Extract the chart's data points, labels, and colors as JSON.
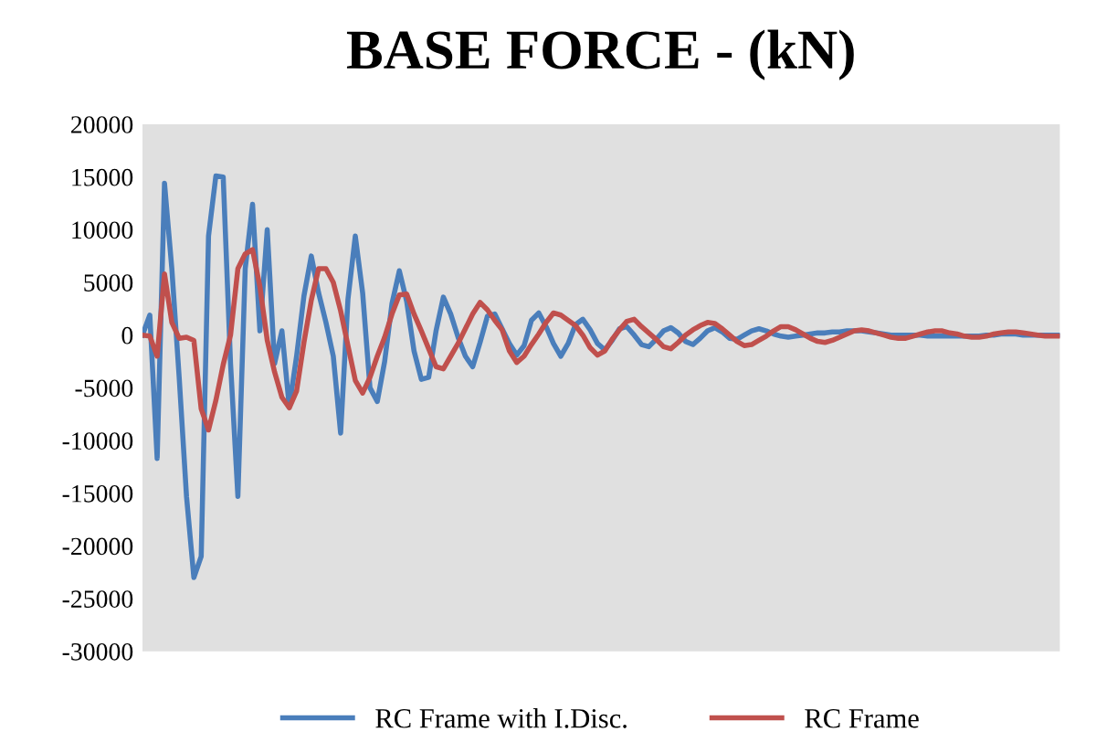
{
  "chart_data": {
    "type": "line",
    "title": "BASE FORCE - (kN)",
    "categories": [
      null,
      null,
      null,
      null,
      null,
      null,
      null,
      null,
      null,
      null,
      null,
      null,
      null,
      null,
      null,
      null,
      null,
      null,
      null,
      null,
      null,
      null,
      null,
      null,
      null,
      null,
      null,
      null,
      null,
      null,
      null,
      null,
      null,
      null,
      null,
      null,
      null,
      null,
      null,
      null,
      null,
      null,
      null,
      null,
      null,
      null,
      null,
      null,
      null,
      null,
      null,
      null,
      null,
      null,
      null,
      null,
      null,
      null,
      null,
      null,
      null,
      null,
      null,
      null,
      null,
      null,
      null,
      null,
      null,
      null,
      null,
      null,
      null,
      null,
      null,
      null,
      null,
      null,
      null,
      null,
      null,
      null,
      null,
      null,
      null,
      null,
      null,
      null,
      null,
      null,
      null,
      null,
      null,
      null,
      null,
      null,
      null,
      null,
      null,
      null,
      null,
      null,
      null,
      null,
      null,
      null,
      null,
      null,
      null,
      null,
      null,
      null,
      null,
      null,
      null,
      null,
      null,
      null,
      null,
      null,
      null,
      null,
      null,
      null,
      null,
      null
    ],
    "ylim": [
      -30000,
      20000
    ],
    "yticks": [
      -30000,
      -25000,
      -20000,
      -15000,
      -10000,
      -5000,
      0,
      5000,
      10000,
      15000,
      20000
    ],
    "tick_labels": "y",
    "grid": false,
    "legend": "bottom",
    "line_style": "solid",
    "marker": "none",
    "series": [
      {
        "name": "RC Frame with I.Disc.",
        "color": "#4a7ebb",
        "values": [
          0,
          1900,
          -11700,
          14400,
          6300,
          -4000,
          -15300,
          -23000,
          -21000,
          9400,
          15100,
          15000,
          -2700,
          -15300,
          6300,
          12400,
          400,
          10000,
          -2700,
          400,
          -6800,
          -2000,
          3700,
          7500,
          4000,
          1200,
          -2000,
          -9300,
          3400,
          9400,
          4000,
          -5000,
          -6300,
          -2500,
          3000,
          6100,
          3200,
          -1500,
          -4200,
          -4000,
          400,
          3600,
          2000,
          -200,
          -2000,
          -3000,
          -700,
          1800,
          2000,
          600,
          -800,
          -1900,
          -1000,
          1400,
          2100,
          800,
          -800,
          -2000,
          -800,
          1000,
          1500,
          500,
          -800,
          -1400,
          -500,
          600,
          800,
          0,
          -900,
          -1100,
          -400,
          400,
          700,
          200,
          -600,
          -900,
          -300,
          400,
          700,
          300,
          -300,
          -400,
          0,
          400,
          600,
          400,
          100,
          -100,
          -200,
          -100,
          0,
          100,
          200,
          200,
          300,
          300,
          400,
          400,
          400,
          300,
          200,
          100,
          0,
          0,
          0,
          0,
          0,
          -100,
          -100,
          -100,
          -100,
          -100,
          -100,
          -100,
          -100,
          0,
          0,
          100,
          100,
          100,
          0,
          0,
          0,
          0,
          0,
          0
        ]
      },
      {
        "name": "RC Frame",
        "color": "#c0504d",
        "values": [
          0,
          -100,
          -2000,
          5800,
          1200,
          -300,
          -200,
          -500,
          -7000,
          -9000,
          -6200,
          -2800,
          0,
          6300,
          7700,
          8100,
          4600,
          -500,
          -3500,
          -5900,
          -6900,
          -5300,
          -700,
          3300,
          6300,
          6300,
          5000,
          2300,
          -1000,
          -4300,
          -5500,
          -4000,
          -2000,
          -200,
          2000,
          3800,
          3900,
          2000,
          400,
          -1300,
          -3000,
          -3200,
          -2000,
          -800,
          600,
          2000,
          3100,
          2400,
          1400,
          500,
          -1500,
          -2600,
          -2000,
          -900,
          100,
          1200,
          2100,
          1900,
          1400,
          900,
          0,
          -1200,
          -1900,
          -1500,
          -400,
          500,
          1300,
          1500,
          800,
          200,
          -400,
          -1100,
          -1300,
          -700,
          0,
          500,
          900,
          1200,
          1100,
          600,
          0,
          -600,
          -1000,
          -900,
          -500,
          -100,
          400,
          800,
          800,
          500,
          100,
          -300,
          -600,
          -700,
          -500,
          -200,
          100,
          400,
          500,
          400,
          200,
          0,
          -200,
          -300,
          -300,
          -100,
          100,
          300,
          400,
          400,
          200,
          100,
          -100,
          -200,
          -200,
          -100,
          100,
          200,
          300,
          300,
          200,
          100,
          0,
          -100,
          -100,
          -100
        ]
      }
    ]
  }
}
